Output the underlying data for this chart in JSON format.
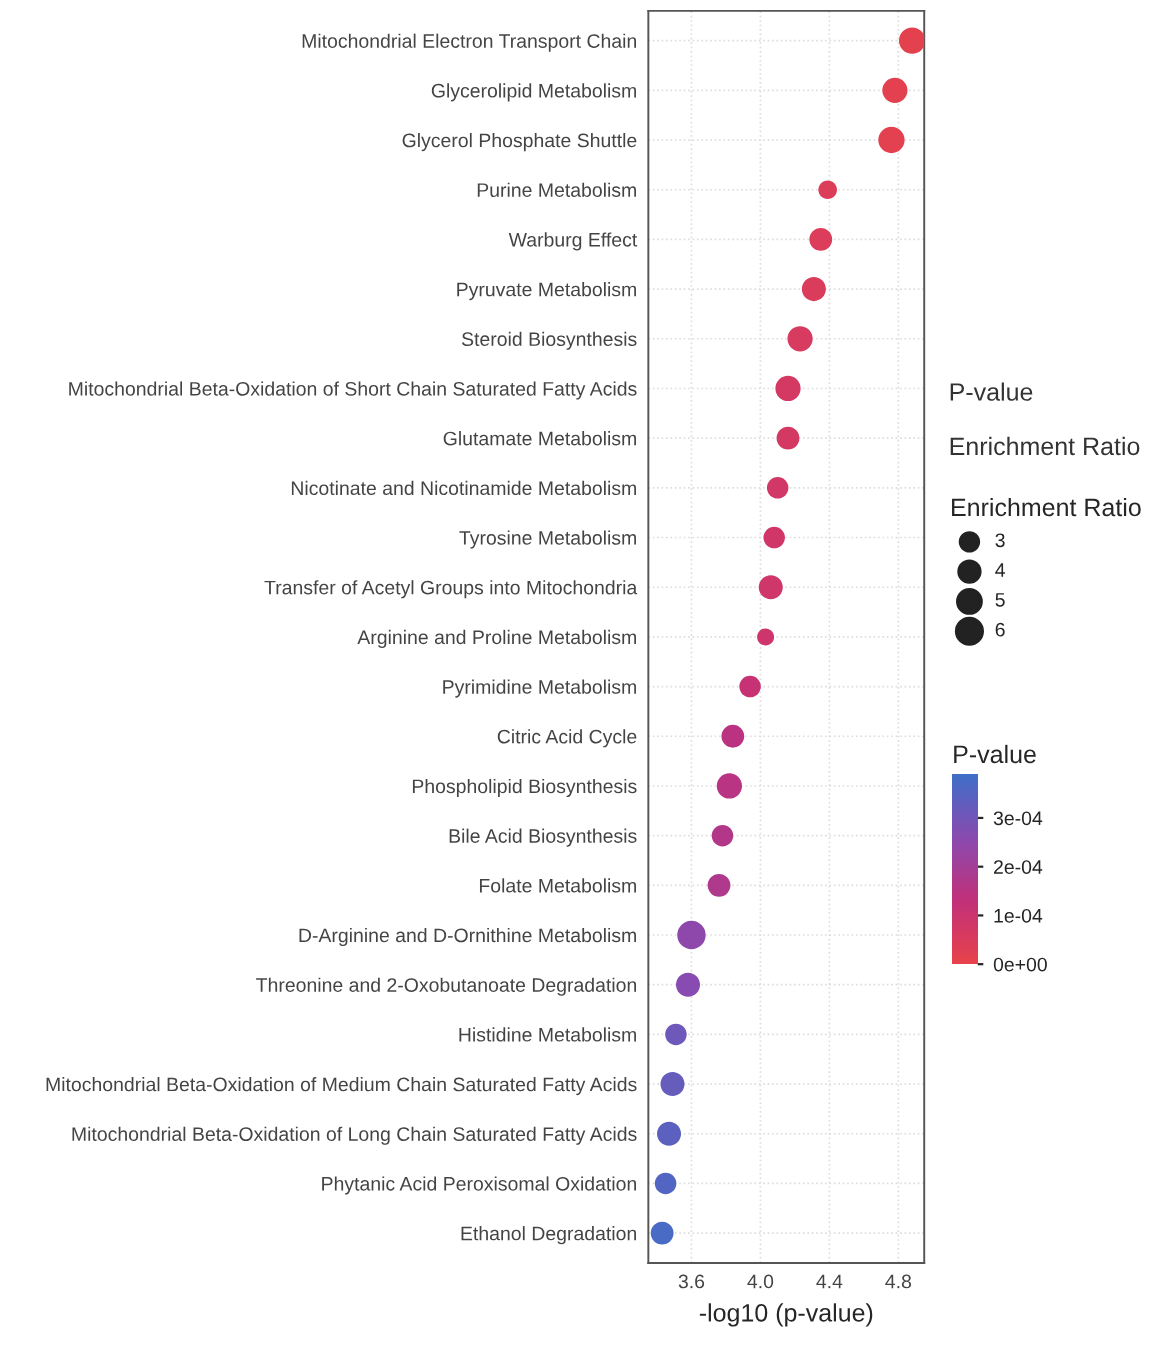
{
  "chart_data": {
    "type": "bubble",
    "orientation": "horizontal",
    "categories": [
      "Mitochondrial Electron Transport Chain",
      "Glycerolipid Metabolism",
      "Glycerol Phosphate Shuttle",
      "Purine Metabolism",
      "Warburg Effect",
      "Pyruvate Metabolism",
      "Steroid Biosynthesis",
      "Mitochondrial Beta-Oxidation of Short Chain Saturated Fatty Acids",
      "Glutamate Metabolism",
      "Nicotinate and Nicotinamide Metabolism",
      "Tyrosine Metabolism",
      "Transfer of Acetyl Groups into Mitochondria",
      "Arginine and Proline Metabolism",
      "Pyrimidine Metabolism",
      "Citric Acid Cycle",
      "Phospholipid Biosynthesis",
      "Bile Acid Biosynthesis",
      "Folate Metabolism",
      "D-Arginine and D-Ornithine Metabolism",
      "Threonine and 2-Oxobutanoate Degradation",
      "Histidine Metabolism",
      "Mitochondrial Beta-Oxidation of Medium Chain Saturated Fatty Acids",
      "Mitochondrial Beta-Oxidation of Long Chain Saturated Fatty Acids",
      "Phytanic Acid Peroxisomal Oxidation",
      "Ethanol Degradation"
    ],
    "values": [
      4.88,
      4.78,
      4.76,
      4.39,
      4.35,
      4.31,
      4.23,
      4.16,
      4.16,
      4.1,
      4.08,
      4.06,
      4.03,
      3.94,
      3.84,
      3.82,
      3.78,
      3.76,
      3.6,
      3.58,
      3.51,
      3.49,
      3.47,
      3.45,
      3.43
    ],
    "sizes": [
      6,
      5.5,
      6,
      3,
      4.5,
      5,
      5.5,
      5.5,
      4.5,
      4,
      4,
      5,
      2.5,
      4,
      4.5,
      5.5,
      4,
      4.5,
      7,
      5,
      4,
      5,
      5,
      4,
      4.5
    ],
    "cvalues": [
      1.3e-05,
      1.7e-05,
      1.7e-05,
      4.1e-05,
      4.5e-05,
      4.9e-05,
      5.9e-05,
      6.9e-05,
      6.9e-05,
      7.9e-05,
      8.3e-05,
      8.7e-05,
      9.3e-05,
      0.000115,
      0.000145,
      0.000151,
      0.000166,
      0.000174,
      0.000251,
      0.000263,
      0.000309,
      0.000324,
      0.000339,
      0.000355,
      0.000372
    ],
    "size_legend": [
      3,
      4,
      5,
      6
    ],
    "legend_title": "Enrichment Ratio",
    "clabel": "P-value",
    "clim": [
      0,
      0.00039
    ],
    "cticks": [
      {
        "value": 0,
        "label": "0e+00"
      },
      {
        "value": 0.0001,
        "label": "1e-04"
      },
      {
        "value": 0.0002,
        "label": "2e-04"
      },
      {
        "value": 0.0003,
        "label": "3e-04"
      }
    ],
    "xlabel": "-log10 (p-value)",
    "xlim": [
      3.35,
      4.95
    ],
    "xticks": [
      {
        "value": 3.6,
        "label": "3.6"
      },
      {
        "value": 4.0,
        "label": "4.0"
      },
      {
        "value": 4.4,
        "label": "4.4"
      },
      {
        "value": 4.8,
        "label": "4.8"
      }
    ],
    "annotations": [
      "P-value",
      "Enrichment Ratio"
    ],
    "grid": true
  }
}
